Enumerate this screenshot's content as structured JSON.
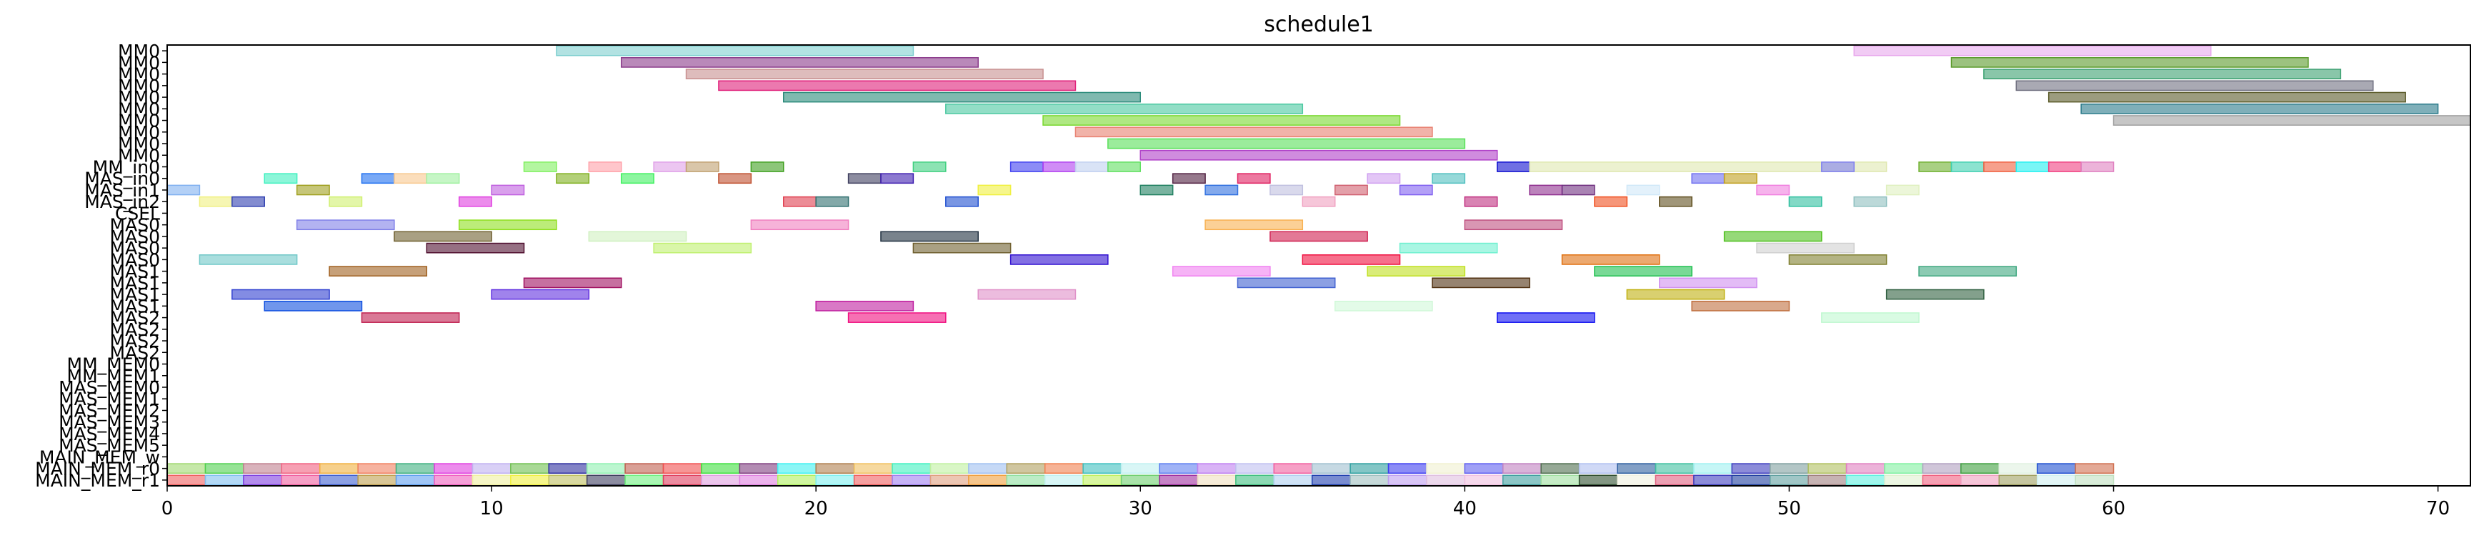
{
  "chart_data": {
    "type": "gantt",
    "title": "schedule1",
    "xlabel": "",
    "ylabel": "",
    "xlim": [
      0,
      71
    ],
    "xticks": [
      0,
      10,
      20,
      30,
      40,
      50,
      60,
      70
    ],
    "grid": false,
    "rows": [
      "MM0",
      "MM0",
      "MM0",
      "MM0",
      "MM0",
      "MM0",
      "MM0",
      "MM0",
      "MM0",
      "MM0",
      "MM_in0",
      "MAS_in0",
      "MAS_in1",
      "MAS_in2",
      "CSEL",
      "MAS0",
      "MAS0",
      "MAS0",
      "MAS0",
      "MAS1",
      "MAS1",
      "MAS1",
      "MAS1",
      "MAS2",
      "MAS2",
      "MAS2",
      "MAS2",
      "MM_MEM0",
      "MM_MEM1",
      "MAS_MEM0",
      "MAS_MEM1",
      "MAS_MEM2",
      "MAS_MEM3",
      "MAS_MEM4",
      "MAS_MEM5",
      "MAIN_MEM_w",
      "MAIN_MEM_r0",
      "MAIN_MEM_r1"
    ],
    "bars": [
      {
        "row": 0,
        "start": 12,
        "end": 23,
        "color": "#7ecfcf"
      },
      {
        "row": 0,
        "start": 52,
        "end": 63,
        "color": "#e8a8ec"
      },
      {
        "row": 1,
        "start": 14,
        "end": 25,
        "color": "#8a3a8a"
      },
      {
        "row": 1,
        "start": 55,
        "end": 66,
        "color": "#5a9a2a"
      },
      {
        "row": 2,
        "start": 16,
        "end": 27,
        "color": "#c89090"
      },
      {
        "row": 2,
        "start": 56,
        "end": 67,
        "color": "#3aa070"
      },
      {
        "row": 3,
        "start": 17,
        "end": 28,
        "color": "#e0207a"
      },
      {
        "row": 3,
        "start": 57,
        "end": 68,
        "color": "#707080"
      },
      {
        "row": 4,
        "start": 19,
        "end": 30,
        "color": "#2a8a7a"
      },
      {
        "row": 4,
        "start": 58,
        "end": 69,
        "color": "#5a5a28"
      },
      {
        "row": 5,
        "start": 24,
        "end": 35,
        "color": "#4ac8a0"
      },
      {
        "row": 5,
        "start": 59,
        "end": 70,
        "color": "#2a7a8a"
      },
      {
        "row": 6,
        "start": 27,
        "end": 38,
        "color": "#7ad830"
      },
      {
        "row": 6,
        "start": 60,
        "end": 71,
        "color": "#a0a0a0"
      },
      {
        "row": 7,
        "start": 28,
        "end": 39,
        "color": "#e88070"
      },
      {
        "row": 8,
        "start": 29,
        "end": 40,
        "color": "#58e058"
      },
      {
        "row": 9,
        "start": 30,
        "end": 41,
        "color": "#b040c8"
      },
      {
        "row": 10,
        "start": 11,
        "end": 12,
        "color": "#80f060"
      },
      {
        "row": 10,
        "start": 13,
        "end": 14,
        "color": "#ffa0a8"
      },
      {
        "row": 10,
        "start": 15,
        "end": 16,
        "color": "#e0a0e8"
      },
      {
        "row": 10,
        "start": 16,
        "end": 17,
        "color": "#c0a070"
      },
      {
        "row": 10,
        "start": 18,
        "end": 19,
        "color": "#40a020"
      },
      {
        "row": 10,
        "start": 23,
        "end": 24,
        "color": "#40d080"
      },
      {
        "row": 10,
        "start": 26,
        "end": 27,
        "color": "#4040f0"
      },
      {
        "row": 10,
        "start": 27,
        "end": 28,
        "color": "#b040f0"
      },
      {
        "row": 10,
        "start": 28,
        "end": 29,
        "color": "#c0d0f0"
      },
      {
        "row": 10,
        "start": 29,
        "end": 30,
        "color": "#60e060"
      },
      {
        "row": 10,
        "start": 41,
        "end": 42,
        "color": "#1010d0"
      },
      {
        "row": 10,
        "start": 42,
        "end": 53,
        "color": "#e0e8b0"
      },
      {
        "row": 10,
        "start": 51,
        "end": 52,
        "color": "#8080f0"
      },
      {
        "row": 10,
        "start": 54,
        "end": 55,
        "color": "#70b030"
      },
      {
        "row": 10,
        "start": 55,
        "end": 56,
        "color": "#40d0b0"
      },
      {
        "row": 10,
        "start": 56,
        "end": 57,
        "color": "#f06040"
      },
      {
        "row": 10,
        "start": 57,
        "end": 58,
        "color": "#20f0f0"
      },
      {
        "row": 10,
        "start": 58,
        "end": 59,
        "color": "#f04080"
      },
      {
        "row": 10,
        "start": 59,
        "end": 60,
        "color": "#e080c0"
      },
      {
        "row": 11,
        "start": 3,
        "end": 4,
        "color": "#40f0c0"
      },
      {
        "row": 11,
        "start": 6,
        "end": 7,
        "color": "#2070f0"
      },
      {
        "row": 11,
        "start": 7,
        "end": 8,
        "color": "#f8c890"
      },
      {
        "row": 11,
        "start": 8,
        "end": 9,
        "color": "#a0f0a0"
      },
      {
        "row": 11,
        "start": 12,
        "end": 13,
        "color": "#80b020"
      },
      {
        "row": 11,
        "start": 14,
        "end": 15,
        "color": "#40f060"
      },
      {
        "row": 11,
        "start": 17,
        "end": 18,
        "color": "#c05030"
      },
      {
        "row": 11,
        "start": 21,
        "end": 22,
        "color": "#404060"
      },
      {
        "row": 11,
        "start": 22,
        "end": 23,
        "color": "#4020b0"
      },
      {
        "row": 11,
        "start": 31,
        "end": 32,
        "color": "#502040"
      },
      {
        "row": 11,
        "start": 33,
        "end": 34,
        "color": "#e02060"
      },
      {
        "row": 11,
        "start": 37,
        "end": 38,
        "color": "#d0a0f0"
      },
      {
        "row": 11,
        "start": 39,
        "end": 40,
        "color": "#50c0c0"
      },
      {
        "row": 11,
        "start": 47,
        "end": 48,
        "color": "#7070f0"
      },
      {
        "row": 11,
        "start": 48,
        "end": 49,
        "color": "#c0a020"
      },
      {
        "row": 12,
        "start": 0,
        "end": 1,
        "color": "#80b0f0"
      },
      {
        "row": 12,
        "start": 4,
        "end": 5,
        "color": "#a0a020"
      },
      {
        "row": 12,
        "start": 10,
        "end": 11,
        "color": "#c060e0"
      },
      {
        "row": 12,
        "start": 25,
        "end": 26,
        "color": "#f0f040"
      },
      {
        "row": 12,
        "start": 30,
        "end": 31,
        "color": "#208060"
      },
      {
        "row": 12,
        "start": 32,
        "end": 33,
        "color": "#3070e0"
      },
      {
        "row": 12,
        "start": 34,
        "end": 35,
        "color": "#c0c0e0"
      },
      {
        "row": 12,
        "start": 36,
        "end": 37,
        "color": "#d06070"
      },
      {
        "row": 12,
        "start": 38,
        "end": 39,
        "color": "#8060f0"
      },
      {
        "row": 12,
        "start": 42,
        "end": 43,
        "color": "#903090"
      },
      {
        "row": 12,
        "start": 43,
        "end": 44,
        "color": "#703080"
      },
      {
        "row": 12,
        "start": 45,
        "end": 46,
        "color": "#d0e8f8"
      },
      {
        "row": 12,
        "start": 49,
        "end": 50,
        "color": "#f080e0"
      },
      {
        "row": 12,
        "start": 53,
        "end": 54,
        "color": "#e0f0c0"
      },
      {
        "row": 13,
        "start": 1,
        "end": 2,
        "color": "#f0f080"
      },
      {
        "row": 13,
        "start": 2,
        "end": 3,
        "color": "#3040b0"
      },
      {
        "row": 13,
        "start": 5,
        "end": 6,
        "color": "#d0f070"
      },
      {
        "row": 13,
        "start": 9,
        "end": 10,
        "color": "#e040e0"
      },
      {
        "row": 13,
        "start": 19,
        "end": 20,
        "color": "#e04050"
      },
      {
        "row": 13,
        "start": 20,
        "end": 21,
        "color": "#307070"
      },
      {
        "row": 13,
        "start": 24,
        "end": 25,
        "color": "#2050d0"
      },
      {
        "row": 13,
        "start": 35,
        "end": 36,
        "color": "#f0a0c0"
      },
      {
        "row": 13,
        "start": 40,
        "end": 41,
        "color": "#c03080"
      },
      {
        "row": 13,
        "start": 44,
        "end": 45,
        "color": "#f05020"
      },
      {
        "row": 13,
        "start": 46,
        "end": 47,
        "color": "#605020"
      },
      {
        "row": 13,
        "start": 50,
        "end": 51,
        "color": "#30c0a0"
      },
      {
        "row": 13,
        "start": 52,
        "end": 53,
        "color": "#90c0c0"
      },
      {
        "row": 15,
        "start": 4,
        "end": 7,
        "color": "#8080e8"
      },
      {
        "row": 15,
        "start": 9,
        "end": 12,
        "color": "#90e020"
      },
      {
        "row": 15,
        "start": 18,
        "end": 21,
        "color": "#f080c0"
      },
      {
        "row": 15,
        "start": 32,
        "end": 35,
        "color": "#f8b050"
      },
      {
        "row": 15,
        "start": 40,
        "end": 43,
        "color": "#c05080"
      },
      {
        "row": 16,
        "start": 7,
        "end": 10,
        "color": "#706030"
      },
      {
        "row": 16,
        "start": 13,
        "end": 16,
        "color": "#d0f0c0"
      },
      {
        "row": 16,
        "start": 22,
        "end": 25,
        "color": "#203040"
      },
      {
        "row": 16,
        "start": 34,
        "end": 37,
        "color": "#d02050"
      },
      {
        "row": 16,
        "start": 48,
        "end": 51,
        "color": "#50c020"
      },
      {
        "row": 17,
        "start": 8,
        "end": 11,
        "color": "#501030"
      },
      {
        "row": 17,
        "start": 15,
        "end": 18,
        "color": "#c0f070"
      },
      {
        "row": 17,
        "start": 23,
        "end": 26,
        "color": "#706030"
      },
      {
        "row": 17,
        "start": 38,
        "end": 41,
        "color": "#70f0d0"
      },
      {
        "row": 17,
        "start": 49,
        "end": 52,
        "color": "#d0d0d0"
      },
      {
        "row": 18,
        "start": 1,
        "end": 4,
        "color": "#70c8c8"
      },
      {
        "row": 18,
        "start": 26,
        "end": 29,
        "color": "#3010d0"
      },
      {
        "row": 18,
        "start": 35,
        "end": 38,
        "color": "#f01040"
      },
      {
        "row": 18,
        "start": 43,
        "end": 46,
        "color": "#e07010"
      },
      {
        "row": 18,
        "start": 50,
        "end": 53,
        "color": "#808030"
      },
      {
        "row": 19,
        "start": 5,
        "end": 8,
        "color": "#a06020"
      },
      {
        "row": 19,
        "start": 31,
        "end": 34,
        "color": "#f080f0"
      },
      {
        "row": 19,
        "start": 37,
        "end": 40,
        "color": "#c0e020"
      },
      {
        "row": 19,
        "start": 44,
        "end": 47,
        "color": "#20c050"
      },
      {
        "row": 19,
        "start": 54,
        "end": 57,
        "color": "#40a880"
      },
      {
        "row": 20,
        "start": 11,
        "end": 14,
        "color": "#a01060"
      },
      {
        "row": 20,
        "start": 33,
        "end": 36,
        "color": "#4060d0"
      },
      {
        "row": 20,
        "start": 39,
        "end": 42,
        "color": "#503010"
      },
      {
        "row": 20,
        "start": 46,
        "end": 49,
        "color": "#d090f0"
      },
      {
        "row": 21,
        "start": 2,
        "end": 5,
        "color": "#3040d0"
      },
      {
        "row": 21,
        "start": 10,
        "end": 13,
        "color": "#6030e0"
      },
      {
        "row": 21,
        "start": 25,
        "end": 28,
        "color": "#e090c8"
      },
      {
        "row": 21,
        "start": 45,
        "end": 48,
        "color": "#c0b010"
      },
      {
        "row": 21,
        "start": 53,
        "end": 56,
        "color": "#306040"
      },
      {
        "row": 22,
        "start": 3,
        "end": 6,
        "color": "#1050e0"
      },
      {
        "row": 22,
        "start": 20,
        "end": 23,
        "color": "#c020a0"
      },
      {
        "row": 22,
        "start": 36,
        "end": 39,
        "color": "#d0f8d8"
      },
      {
        "row": 22,
        "start": 47,
        "end": 50,
        "color": "#c07040"
      },
      {
        "row": 23,
        "start": 6,
        "end": 9,
        "color": "#c02050"
      },
      {
        "row": 23,
        "start": 21,
        "end": 24,
        "color": "#f01080"
      },
      {
        "row": 23,
        "start": 41,
        "end": 44,
        "color": "#1010f0"
      },
      {
        "row": 23,
        "start": 51,
        "end": 54,
        "color": "#c0f8d0"
      }
    ],
    "mem_rows": [
      {
        "row": 36,
        "colors": [
          "#a0d870",
          "#50d050",
          "#c08090",
          "#f06080",
          "#f0b040",
          "#f08060",
          "#40b080",
          "#e040e0",
          "#c0b0f0",
          "#70c050",
          "#3030a0",
          "#90f0b0",
          "#c06050",
          "#f05050",
          "#40e040",
          "#804080",
          "#40f0f0",
          "#b08050",
          "#f0c060",
          "#40f0c0",
          "#c0f0a0",
          "#a0c0f0",
          "#b0a060",
          "#f08050",
          "#40c0c0",
          "#c0f0f0",
          "#6080f0",
          "#c080f0",
          "#c0c0f0",
          "#f060a0",
          "#a0c0d0",
          "#30a0a0",
          "#4040f0",
          "#f0f0d0",
          "#6060f0",
          "#c080c0",
          "#507050",
          "#b0c0f0",
          "#3060a0",
          "#40c0a0",
          "#a0f0f0",
          "#4040c0",
          "#80a0a0",
          "#b0c060",
          "#e080c0",
          "#80f0a0",
          "#b0a0c0",
          "#40a040",
          "#e0f0e0",
          "#2050d0",
          "#d07050"
        ]
      },
      {
        "row": 37,
        "colors": [
          "#f06060",
          "#80c0f0",
          "#8040e0",
          "#f060a0",
          "#4060d0",
          "#c0a050",
          "#60a0f0",
          "#f060c0",
          "#f0f0a0",
          "#f0f040",
          "#c0c060",
          "#404060",
          "#70f080",
          "#e04060",
          "#e0a0e0",
          "#e080e0",
          "#b0f060",
          "#80f0f0",
          "#f06060",
          "#a080f0",
          "#e0a080",
          "#f0a040",
          "#90e0a0",
          "#c0f0f0",
          "#c0f060",
          "#70d070",
          "#a030a0",
          "#f0e0c0",
          "#40c080",
          "#b0d0f0",
          "#2040b0",
          "#a0c0c0",
          "#c0a0f0",
          "#e0c0e0",
          "#f0c0e0",
          "#40a0a0",
          "#a0e0a0",
          "#305030",
          "#f0f0e0",
          "#e06080",
          "#4040c0",
          "#2040a0",
          "#60a0a0",
          "#a08080",
          "#60f0e0",
          "#e0f0d0",
          "#f06080",
          "#f0a0c0",
          "#a0a060",
          "#d0f0f0",
          "#c0e0c0"
        ]
      }
    ]
  }
}
